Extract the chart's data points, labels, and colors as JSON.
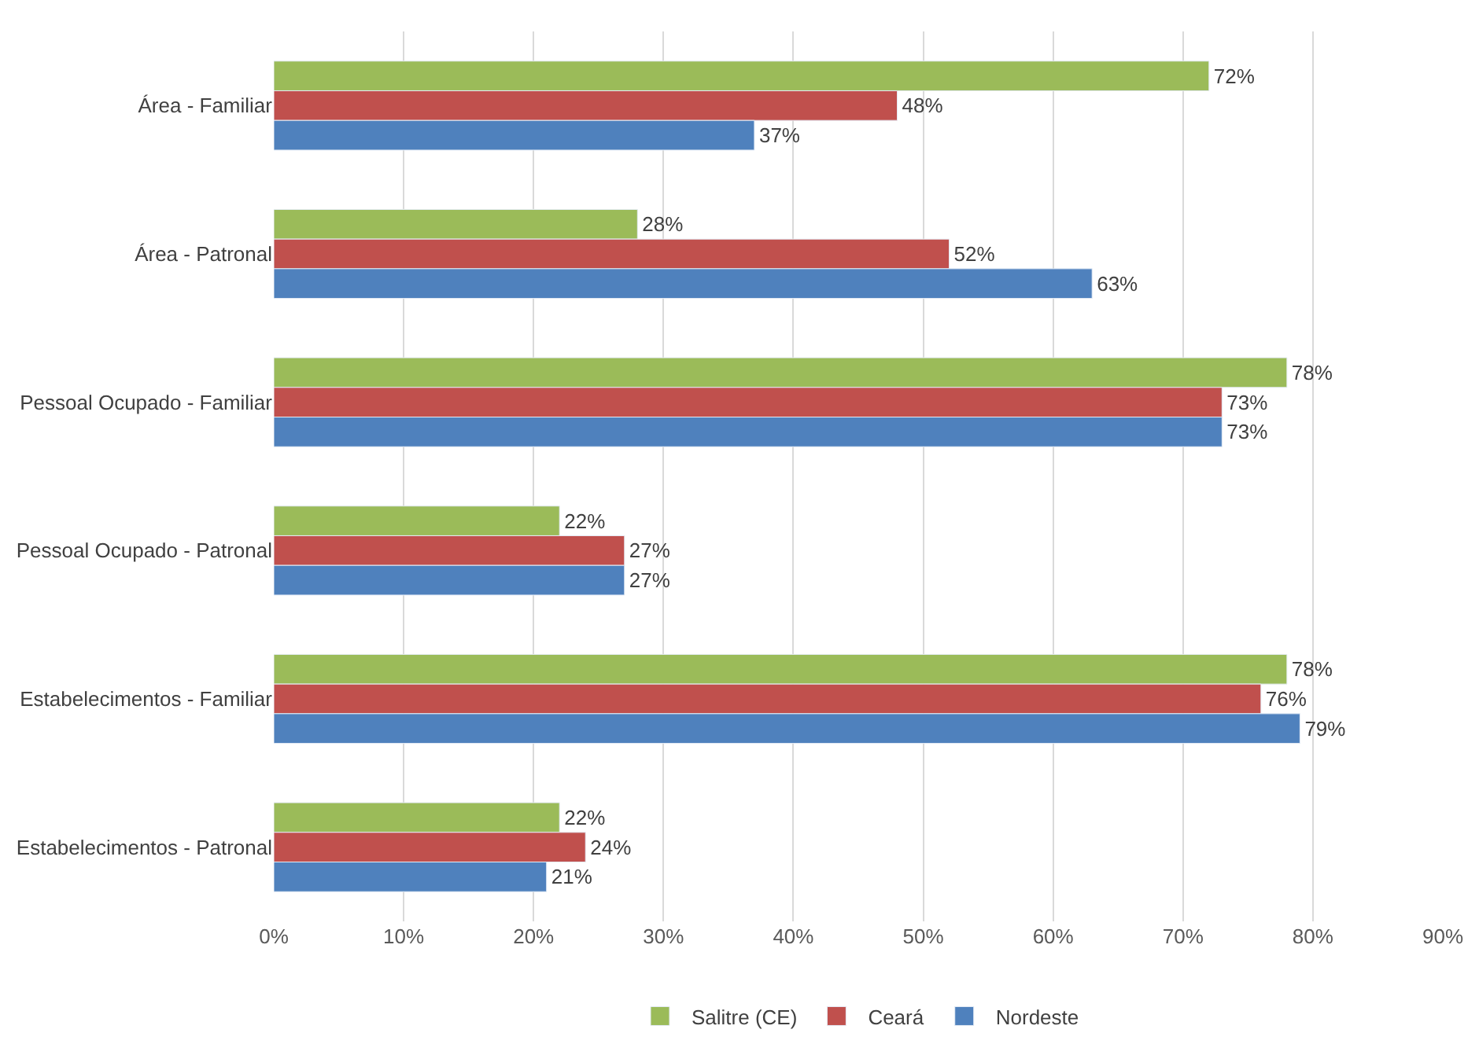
{
  "chart_data": {
    "type": "bar",
    "orientation": "horizontal",
    "categories": [
      "Área - Familiar",
      "Área - Patronal",
      "Pessoal Ocupado - Familiar",
      "Pessoal Ocupado - Patronal",
      "Estabelecimentos - Familiar",
      "Estabelecimentos - Patronal"
    ],
    "series": [
      {
        "name": "Salitre (CE)",
        "color": "#9bbb59",
        "values": [
          72,
          28,
          78,
          22,
          78,
          22
        ],
        "value_labels": [
          "72%",
          "28%",
          "78%",
          "22%",
          "78%",
          "22%"
        ]
      },
      {
        "name": "Ceará",
        "color": "#c0504d",
        "values": [
          48,
          52,
          73,
          27,
          76,
          24
        ],
        "value_labels": [
          "48%",
          "52%",
          "73%",
          "27%",
          "76%",
          "24%"
        ]
      },
      {
        "name": "Nordeste",
        "color": "#4f81bd",
        "values": [
          37,
          63,
          73,
          27,
          79,
          21
        ],
        "value_labels": [
          "37%",
          "63%",
          "73%",
          "27%",
          "79%",
          "21%"
        ]
      }
    ],
    "xlim": [
      0,
      90
    ],
    "xticks": [
      {
        "value": 0,
        "label": "0%"
      },
      {
        "value": 10,
        "label": "10%"
      },
      {
        "value": 20,
        "label": "20%"
      },
      {
        "value": 30,
        "label": "30%"
      },
      {
        "value": 40,
        "label": "40%"
      },
      {
        "value": 50,
        "label": "50%"
      },
      {
        "value": 60,
        "label": "60%"
      },
      {
        "value": 70,
        "label": "70%"
      },
      {
        "value": 80,
        "label": "80%"
      },
      {
        "value": 90,
        "label": "90%"
      }
    ],
    "grid": "x",
    "legend": "bottom"
  }
}
